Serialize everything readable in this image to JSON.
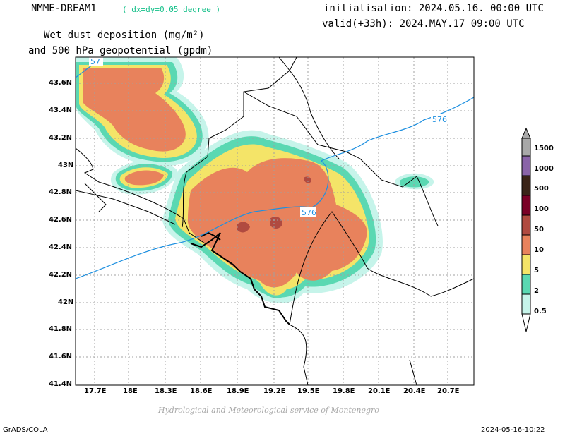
{
  "header": {
    "model": "NMME-DREAM1",
    "resolution": "( dx=dy=0.05 degree )",
    "init": "initialisation: 2024.05.16. 00:00 UTC",
    "valid": "valid(+33h): 2024.MAY.17 09:00 UTC",
    "title_line1": "Wet dust deposition (mg/m²)",
    "title_line2": "and 500 hPa geopotential (gpdm)"
  },
  "axes": {
    "lat_labels": [
      "43.6N",
      "43.4N",
      "43.2N",
      "43N",
      "42.8N",
      "42.6N",
      "42.4N",
      "42.2N",
      "42N",
      "41.8N",
      "41.6N",
      "41.4N"
    ],
    "lon_labels": [
      "17.7E",
      "18E",
      "18.3E",
      "18.6E",
      "18.9E",
      "19.2E",
      "19.5E",
      "19.8E",
      "20.1E",
      "20.4E",
      "20.7E"
    ]
  },
  "contours": {
    "label_576_a": "576",
    "label_576_b": "576",
    "label_576_c": "57",
    "color": "#1e90e0"
  },
  "legend": {
    "levels": [
      {
        "label": "1500",
        "color": "#a8a8a8"
      },
      {
        "label": "1000",
        "color": "#8a64a8"
      },
      {
        "label": "500",
        "color": "#3a2418"
      },
      {
        "label": "100",
        "color": "#7a0026"
      },
      {
        "label": "50",
        "color": "#b04a40"
      },
      {
        "label": "10",
        "color": "#e8825c"
      },
      {
        "label": "5",
        "color": "#f4e468"
      },
      {
        "label": "2",
        "color": "#5ad8b2"
      },
      {
        "label": "0.5",
        "color": "#c6f4ea"
      }
    ]
  },
  "footer": {
    "credit": "Hydrological and Meteorological service of Montenegro",
    "left": "GrADS/COLA",
    "right": "2024-05-16-10:22"
  }
}
